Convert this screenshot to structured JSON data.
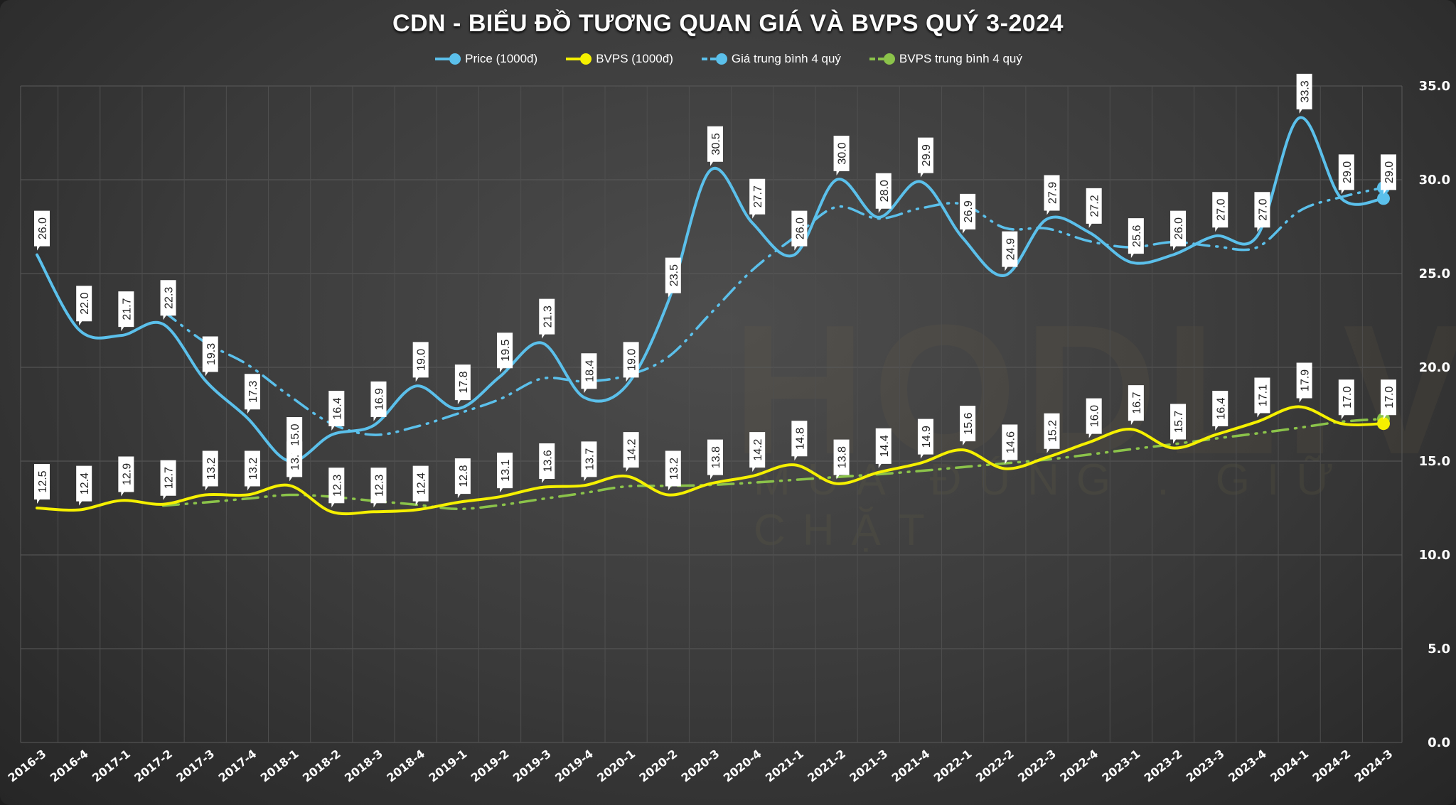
{
  "chart_data": {
    "type": "line",
    "title": "CDN - BIỂU ĐỒ TƯƠNG QUAN GIÁ VÀ BVPS QUÝ 3-2024",
    "xlabel": "",
    "ylabel": "",
    "ylim": [
      0,
      35
    ],
    "yticks": [
      "0.0",
      "5.0",
      "10.0",
      "15.0",
      "20.0",
      "25.0",
      "30.0",
      "35.0"
    ],
    "y_axis_position": "right",
    "grid": true,
    "legend_position": "top",
    "categories": [
      "2016-3",
      "2016-4",
      "2017-1",
      "2017-2",
      "2017-3",
      "2017-4",
      "2018-1",
      "2018-2",
      "2018-3",
      "2018-4",
      "2019-1",
      "2019-2",
      "2019-3",
      "2019-4",
      "2020-1",
      "2020-2",
      "2020-3",
      "2020-4",
      "2021-1",
      "2021-2",
      "2021-3",
      "2021-4",
      "2022-1",
      "2022-2",
      "2022-3",
      "2022-4",
      "2023-1",
      "2023-2",
      "2023-3",
      "2023-4",
      "2024-1",
      "2024-2",
      "2024-3"
    ],
    "series": [
      {
        "name": "Price (1000đ)",
        "color": "#5bc0eb",
        "style": "solid",
        "labels": true,
        "values": [
          26.0,
          22.0,
          21.7,
          22.3,
          19.3,
          17.3,
          15.0,
          16.4,
          16.9,
          19.0,
          17.8,
          19.5,
          21.3,
          18.4,
          19.0,
          23.5,
          30.5,
          27.7,
          26.0,
          30.0,
          28.0,
          29.9,
          26.9,
          24.9,
          27.9,
          27.2,
          25.6,
          26.0,
          27.0,
          27.0,
          33.3,
          29.0,
          29.0
        ]
      },
      {
        "name": "BVPS (1000đ)",
        "color": "#f5f000",
        "style": "solid",
        "labels": true,
        "values": [
          12.5,
          12.4,
          12.9,
          12.7,
          13.2,
          13.2,
          13.7,
          12.3,
          12.3,
          12.4,
          12.8,
          13.1,
          13.6,
          13.7,
          14.2,
          13.2,
          13.8,
          14.2,
          14.8,
          13.8,
          14.4,
          14.9,
          15.6,
          14.6,
          15.2,
          16.0,
          16.7,
          15.7,
          16.4,
          17.1,
          17.9,
          17.0,
          17.0
        ]
      },
      {
        "name": "Giá trung bình 4 quý",
        "color": "#5bc0eb",
        "style": "dashdot",
        "labels": false,
        "values": [
          null,
          null,
          null,
          23.0,
          21.33,
          20.15,
          18.48,
          17.0,
          16.4,
          16.83,
          17.53,
          18.3,
          19.4,
          19.25,
          19.55,
          20.55,
          22.85,
          25.18,
          26.93,
          28.55,
          27.93,
          28.48,
          28.7,
          27.43,
          27.4,
          26.73,
          26.4,
          26.68,
          26.45,
          26.4,
          28.33,
          29.08,
          29.58
        ]
      },
      {
        "name": "BVPS trung bình 4 quý",
        "color": "#8bc34a",
        "style": "dashdot",
        "labels": false,
        "values": [
          null,
          null,
          null,
          12.63,
          12.8,
          13.0,
          13.2,
          13.1,
          12.88,
          12.68,
          12.45,
          12.65,
          12.98,
          13.3,
          13.65,
          13.68,
          13.73,
          13.85,
          14.0,
          14.15,
          14.3,
          14.48,
          14.68,
          14.88,
          15.08,
          15.35,
          15.63,
          15.9,
          16.2,
          16.48,
          16.78,
          17.1,
          17.25
        ]
      }
    ]
  },
  "watermark": {
    "brand": "HODL.VN",
    "slogan": "MUA ĐÚNG . GIỮ CHẶT"
  }
}
